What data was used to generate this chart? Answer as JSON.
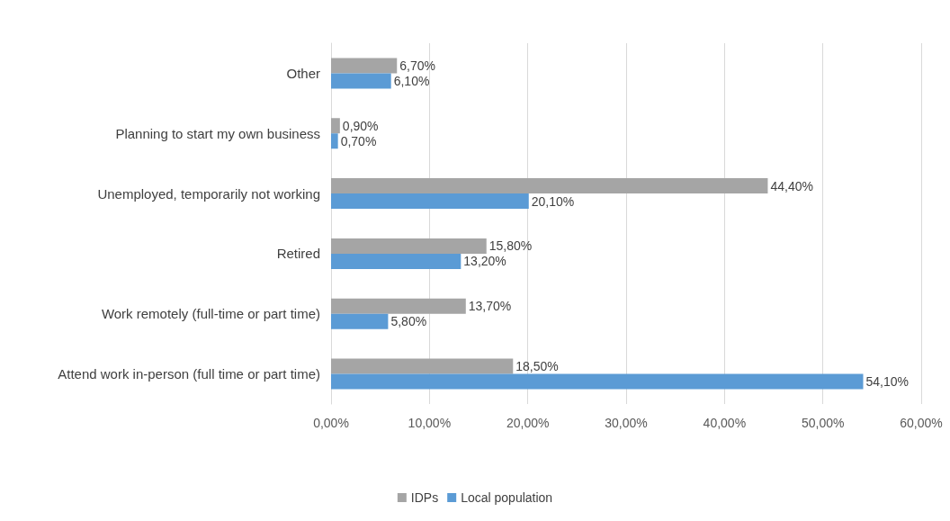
{
  "chart_data": {
    "type": "bar",
    "orientation": "horizontal",
    "categories": [
      "Other",
      "Planning to start my own business",
      "Unemployed, temporarily not working",
      "Retired",
      "Work remotely (full-time or part time)",
      "Attend work in-person (full time or part time)"
    ],
    "series": [
      {
        "name": "IDPs",
        "color": "#a5a5a5",
        "values": [
          6.7,
          0.9,
          44.4,
          15.8,
          13.7,
          18.5
        ],
        "value_labels": [
          "6,70%",
          "0,90%",
          "44,40%",
          "15,80%",
          "13,70%",
          "18,50%"
        ]
      },
      {
        "name": "Local population",
        "color": "#5b9bd5",
        "values": [
          6.1,
          0.7,
          20.1,
          13.2,
          5.8,
          54.1
        ],
        "value_labels": [
          "6,10%",
          "0,70%",
          "20,10%",
          "13,20%",
          "5,80%",
          "54,10%"
        ]
      }
    ],
    "xlim": [
      0,
      60
    ],
    "xticks": [
      {
        "value": 0,
        "label": "0,00%"
      },
      {
        "value": 10,
        "label": "10,00%"
      },
      {
        "value": 20,
        "label": "20,00%"
      },
      {
        "value": 30,
        "label": "30,00%"
      },
      {
        "value": 40,
        "label": "40,00%"
      },
      {
        "value": 50,
        "label": "50,00%"
      },
      {
        "value": 60,
        "label": "60,00%"
      }
    ],
    "grid": "x",
    "legend": "bottom"
  }
}
